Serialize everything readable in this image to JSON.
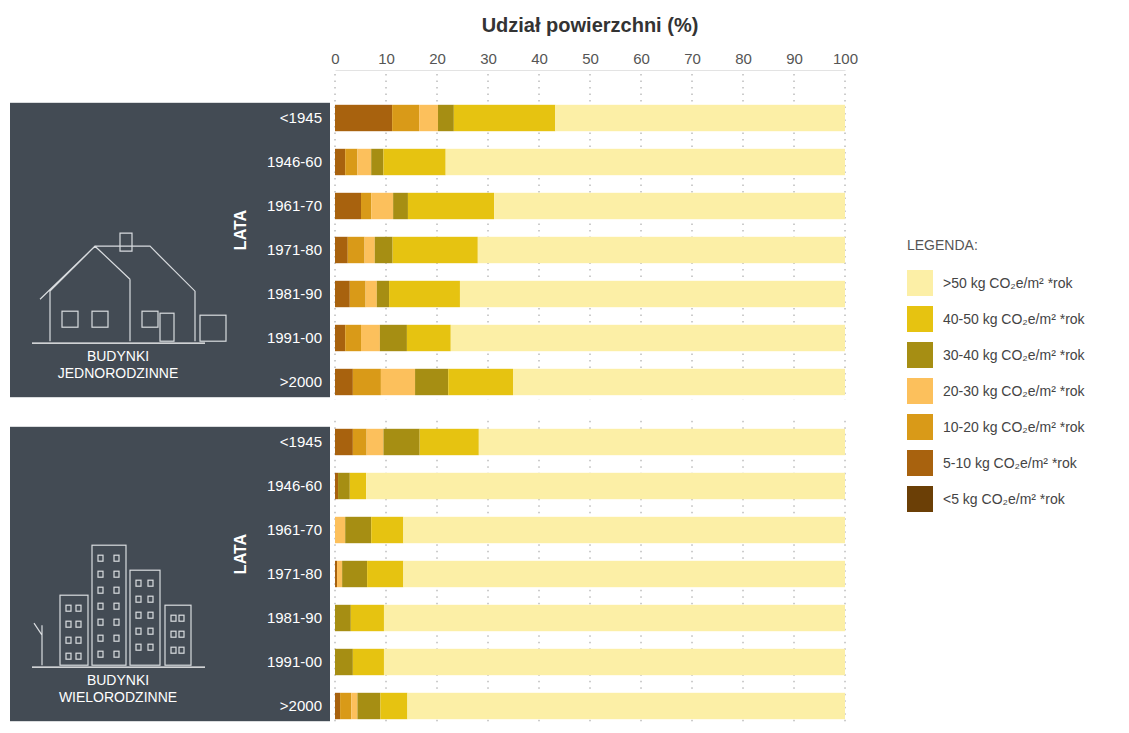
{
  "chart_data": [
    {
      "type": "bar",
      "orientation": "horizontal",
      "stacked": true,
      "grid": true,
      "legend": "right",
      "tick_labels": true,
      "title": "Udział powierzchni (%)",
      "subtitle": "BUDYNKI JEDNORODZINNE",
      "y_label": "LATA",
      "legend_title": "LEGENDA:",
      "categories": [
        "<1945",
        "1946-60",
        "1961-70",
        "1971-80",
        "1981-90",
        "1991-00",
        ">2000"
      ],
      "xlim": [
        0,
        100
      ],
      "xticks": [
        0,
        10,
        20,
        30,
        40,
        50,
        60,
        70,
        80,
        90,
        100
      ],
      "series": [
        {
          "name": ">50 kg CO₂e/m² *rok",
          "color": "#fcefa6",
          "values": [
            56.8,
            78.3,
            68.8,
            72.0,
            75.5,
            77.3,
            65.1
          ]
        },
        {
          "name": "40-50 kg CO₂e/m² *rok",
          "color": "#e6c311",
          "values": [
            19.9,
            12.2,
            16.9,
            16.7,
            13.9,
            8.6,
            12.7
          ]
        },
        {
          "name": "30-40 kg CO₂e/m² *rok",
          "color": "#a68e13",
          "values": [
            3.1,
            2.4,
            2.9,
            3.5,
            2.4,
            5.3,
            6.5
          ]
        },
        {
          "name": "20-30 kg CO₂e/m² *rok",
          "color": "#fcc05c",
          "values": [
            3.7,
            2.7,
            4.3,
            2.0,
            2.2,
            3.7,
            6.7
          ]
        },
        {
          "name": "10-20 kg CO₂e/m² *rok",
          "color": "#d99a18",
          "values": [
            5.3,
            2.4,
            2.0,
            3.3,
            3.1,
            3.1,
            5.5
          ]
        },
        {
          "name": "5-10 kg CO₂e/m² *rok",
          "color": "#a8620e",
          "values": [
            11.2,
            2.0,
            5.1,
            2.5,
            2.9,
            2.0,
            3.5
          ]
        },
        {
          "name": "<5 kg CO₂e/m² *rok",
          "color": "#6b3f06",
          "values": [
            0,
            0,
            0,
            0,
            0,
            0,
            0
          ]
        }
      ]
    },
    {
      "type": "bar",
      "orientation": "horizontal",
      "stacked": true,
      "grid": true,
      "tick_labels": "y",
      "subtitle": "BUDYNKI WIELORODZINNE",
      "y_label": "LATA",
      "categories": [
        "<1945",
        "1946-60",
        "1961-70",
        "1971-80",
        "1981-90",
        "1991-00",
        ">2000"
      ],
      "xlim": [
        0,
        100
      ],
      "xticks": [
        0,
        10,
        20,
        30,
        40,
        50,
        60,
        70,
        80,
        90,
        100
      ],
      "series": [
        {
          "name": ">50 kg CO₂e/m² *rok",
          "color": "#fcefa6",
          "values": [
            71.8,
            93.9,
            86.6,
            86.6,
            90.4,
            90.4,
            85.8
          ]
        },
        {
          "name": "40-50 kg CO₂e/m² *rok",
          "color": "#e6c311",
          "values": [
            11.6,
            3.2,
            6.3,
            7.1,
            6.5,
            6.1,
            5.3
          ]
        },
        {
          "name": "30-40 kg CO₂e/m² *rok",
          "color": "#a68e13",
          "values": [
            7.1,
            2.3,
            5.1,
            4.9,
            3.1,
            3.5,
            4.5
          ]
        },
        {
          "name": "20-30 kg CO₂e/m² *rok",
          "color": "#fcc05c",
          "values": [
            3.3,
            0,
            2.0,
            1.0,
            0,
            0,
            1.2
          ]
        },
        {
          "name": "10-20 kg CO₂e/m² *rok",
          "color": "#d99a18",
          "values": [
            2.7,
            0,
            0,
            0,
            0,
            0,
            2.2
          ]
        },
        {
          "name": "5-10 kg CO₂e/m² *rok",
          "color": "#a8620e",
          "values": [
            3.5,
            0.6,
            0,
            0.4,
            0,
            0,
            1.0
          ]
        },
        {
          "name": "<5 kg CO₂e/m² *rok",
          "color": "#6b3f06",
          "values": [
            0,
            0,
            0,
            0,
            0,
            0,
            0
          ]
        }
      ]
    }
  ]
}
